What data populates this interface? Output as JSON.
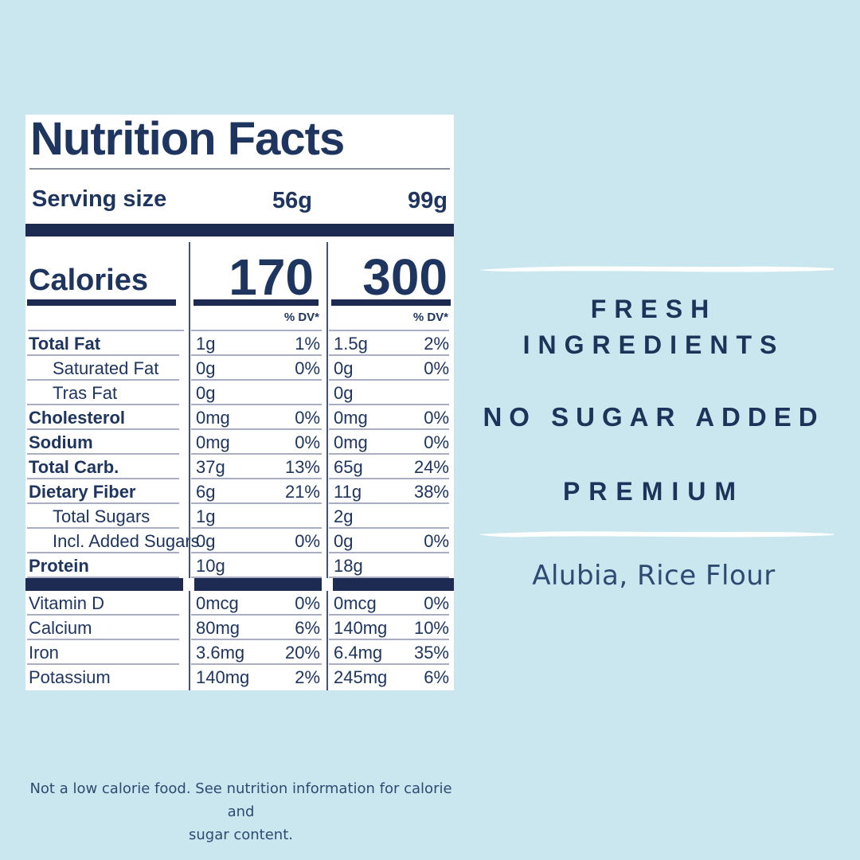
{
  "colors": {
    "background": "#cae7f0",
    "navy": "#1e3560",
    "label_background": "#ffffff",
    "brush_stroke": "#ffffff"
  },
  "label": {
    "title": "Nutrition Facts",
    "serving": {
      "label": "Serving size",
      "v1": "56g",
      "v2": "99g"
    },
    "calories": {
      "label": "Calories",
      "v1": "170",
      "v2": "300"
    },
    "dv_header": "% DV*",
    "rows": [
      {
        "name": "Total Fat",
        "bold": true,
        "indent": false,
        "a1": "1g",
        "p1": "1%",
        "a2": "1.5g",
        "p2": "2%"
      },
      {
        "name": "Saturated Fat",
        "bold": false,
        "indent": true,
        "a1": "0g",
        "p1": "0%",
        "a2": "0g",
        "p2": "0%"
      },
      {
        "name": "Tras Fat",
        "bold": false,
        "indent": true,
        "a1": "0g",
        "p1": "",
        "a2": "0g",
        "p2": ""
      },
      {
        "name": "Cholesterol",
        "bold": true,
        "indent": false,
        "a1": "0mg",
        "p1": "0%",
        "a2": "0mg",
        "p2": "0%"
      },
      {
        "name": "Sodium",
        "bold": true,
        "indent": false,
        "a1": "0mg",
        "p1": "0%",
        "a2": "0mg",
        "p2": "0%"
      },
      {
        "name": "Total Carb.",
        "bold": true,
        "indent": false,
        "a1": "37g",
        "p1": "13%",
        "a2": "65g",
        "p2": "24%"
      },
      {
        "name": "Dietary Fiber",
        "bold": true,
        "indent": false,
        "a1": "6g",
        "p1": "21%",
        "a2": "11g",
        "p2": "38%"
      },
      {
        "name": "Total Sugars",
        "bold": false,
        "indent": true,
        "a1": "1g",
        "p1": "",
        "a2": "2g",
        "p2": ""
      },
      {
        "name": "Incl. Added Sugars",
        "bold": false,
        "indent": true,
        "a1": "0g",
        "p1": "0%",
        "a2": "0g",
        "p2": "0%"
      },
      {
        "name": "Protein",
        "bold": true,
        "indent": false,
        "a1": "10g",
        "p1": "",
        "a2": "18g",
        "p2": ""
      }
    ],
    "vitamin_rows": [
      {
        "name": "Vitamin D",
        "bold": false,
        "indent": false,
        "a1": "0mcg",
        "p1": "0%",
        "a2": "0mcg",
        "p2": "0%"
      },
      {
        "name": "Calcium",
        "bold": false,
        "indent": false,
        "a1": "80mg",
        "p1": "6%",
        "a2": "140mg",
        "p2": "10%"
      },
      {
        "name": "Iron",
        "bold": false,
        "indent": false,
        "a1": "3.6mg",
        "p1": "20%",
        "a2": "6.4mg",
        "p2": "35%"
      },
      {
        "name": "Potassium",
        "bold": false,
        "indent": false,
        "a1": "140mg",
        "p1": "2%",
        "a2": "245mg",
        "p2": "6%"
      }
    ]
  },
  "right_panel": {
    "heading_line1": "FRESH",
    "heading_line2": "INGREDIENTS",
    "heading_line3": "NO SUGAR ADDED",
    "heading_line4": "PREMIUM",
    "ingredients": "Alubia, Rice Flour"
  },
  "footnote": {
    "line1": "Not a low calorie food. See nutrition information for calorie and",
    "line2": "sugar content."
  }
}
